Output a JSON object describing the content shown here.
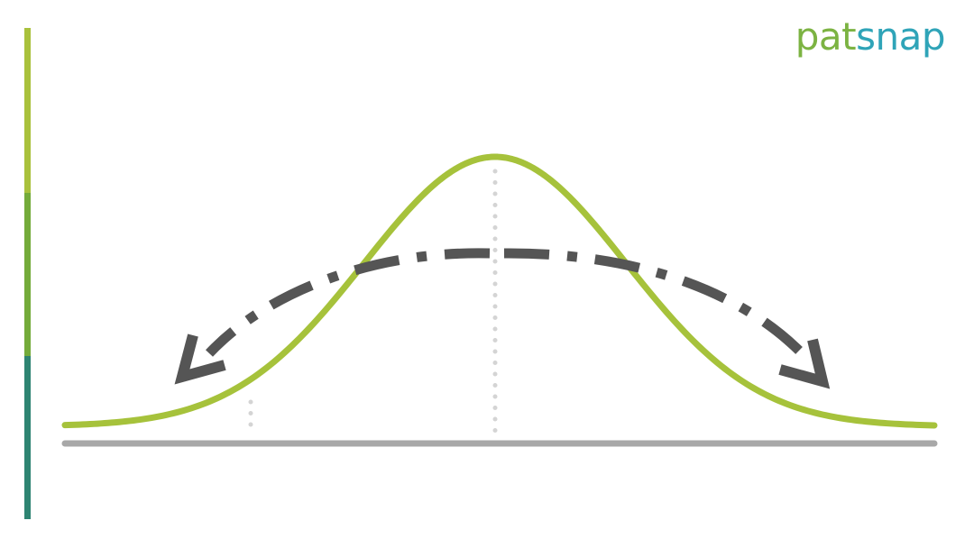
{
  "brand": {
    "logo_part1": "pat",
    "logo_part2": "snap",
    "color_part1": "#7cb342",
    "color_part2": "#2fa4b8"
  },
  "accent_bar": {
    "colors": [
      "#a9c13c",
      "#74ab3a",
      "#2e8472"
    ]
  },
  "diagram": {
    "type": "normal-distribution-curve",
    "curve_color": "#a6c23b",
    "baseline_color": "#a8a8a8",
    "arrow_color": "#555555",
    "guide_color": "#d4d4d4",
    "arrow_direction": "spread-outward-both-sides"
  }
}
